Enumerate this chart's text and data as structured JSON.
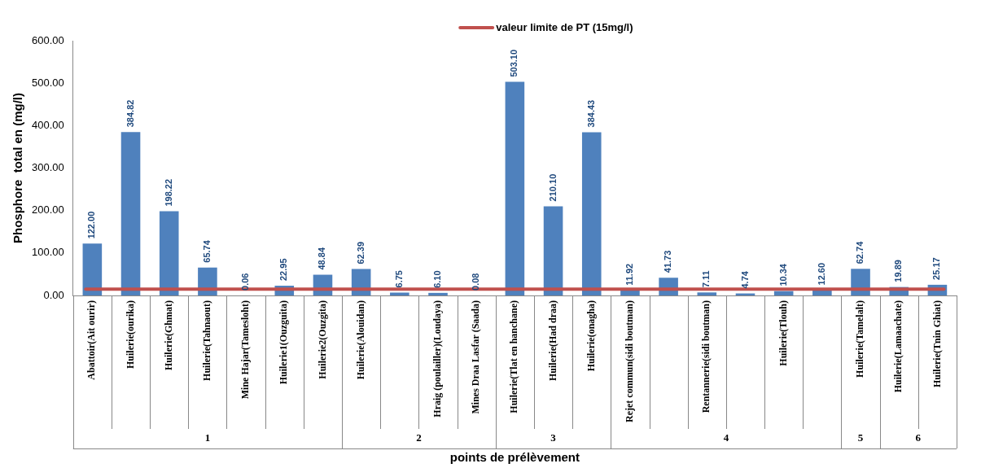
{
  "chart_data": {
    "type": "bar",
    "xlabel": "points de prélèvement",
    "ylabel": "Phosphore  total en (mg/l)",
    "categories": [
      "Abattoir(Ait ourir)",
      "Huilerie(ourika)",
      "Huilerie(Ghmat)",
      "Huilerie(Tahnaout)",
      "Mine Hajar(Tamesloht)",
      "Huilerie1(Ouzguita)",
      "Huilerie2(Ouzgita)",
      "Huilerie(Alouidan)",
      null,
      "Hraig (poulailler)(Loudaya)",
      "Mines Draa Lasfar (Saada)",
      "Huilerie(Tlat en hanchane)",
      "Huilerie(Had draa)",
      "Huilerie(onagha)",
      "Rejet commun(sidi boutman)",
      null,
      "Rentannerie(sidi boutman)",
      null,
      "Huilerie(Tlouh)",
      null,
      "Huilerie(Tamelalt)",
      "Huilerie(Lamaachate)",
      "Huilerie(Tnin Ghiat)"
    ],
    "values": [
      122.0,
      384.82,
      198.22,
      65.74,
      0.06,
      22.95,
      48.84,
      62.39,
      6.75,
      6.1,
      0.08,
      503.1,
      210.1,
      384.43,
      11.92,
      41.73,
      7.11,
      4.74,
      10.34,
      12.6,
      62.74,
      19.89,
      25.17
    ],
    "value_labels": [
      "122.00",
      "384.82",
      "198.22",
      "65.74",
      "0.06",
      "22.95",
      "48.84",
      "62.39",
      "6.75",
      "6.10",
      "0.08",
      "503.10",
      "210.10",
      "384.43",
      "11.92",
      "41.73",
      "7.11",
      "4.74",
      "10.34",
      "12.60",
      "62.74",
      "19.89",
      "25.17"
    ],
    "color": "#4f81bd",
    "ylim": [
      0,
      600
    ],
    "yticks": [
      {
        "value": 0,
        "label": "0.00"
      },
      {
        "value": 100,
        "label": "100.00"
      },
      {
        "value": 200,
        "label": "200.00"
      },
      {
        "value": 300,
        "label": "300.00"
      },
      {
        "value": 400,
        "label": "400.00"
      },
      {
        "value": 500,
        "label": "500.00"
      },
      {
        "value": 600,
        "label": "600.00"
      }
    ],
    "grid": false,
    "ref_lines": [
      {
        "axis": "y",
        "value": 15,
        "label": "valeur limite de PT (15mg/l)",
        "color": "#c0504d"
      }
    ],
    "annotations": [
      "1",
      "2",
      "3",
      "4",
      "5",
      "6"
    ]
  }
}
